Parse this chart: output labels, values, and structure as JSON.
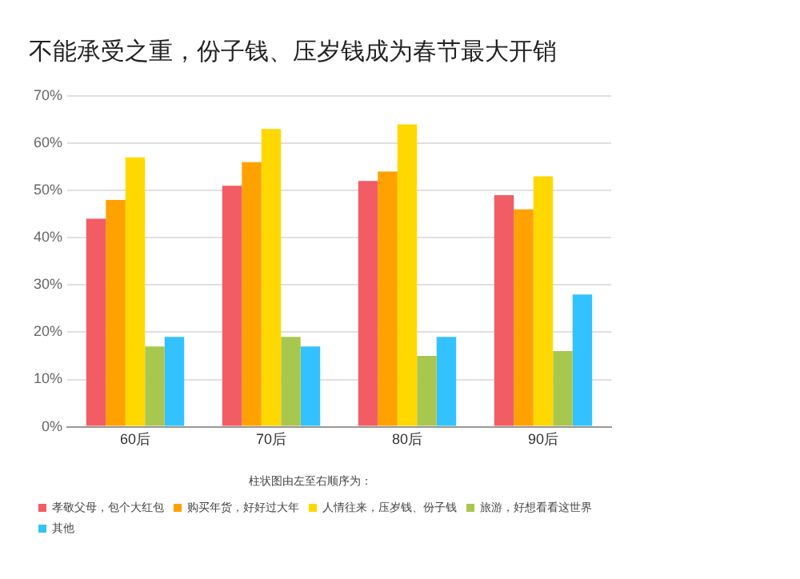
{
  "chart_data": {
    "type": "bar",
    "title": "不能承受之重，份子钱、压岁钱成为春节最大开销",
    "legend_title": "柱状图由左至右顺序为：",
    "categories": [
      "60后",
      "70后",
      "80后",
      "90后"
    ],
    "series": [
      {
        "name": "孝敬父母，包个大红包",
        "color": "#f25c64",
        "values": [
          44,
          51,
          52,
          49
        ]
      },
      {
        "name": "购买年货，好好过大年",
        "color": "#ffa200",
        "values": [
          48,
          56,
          54,
          46
        ]
      },
      {
        "name": "人情往来，压岁钱、份子钱",
        "color": "#ffd800",
        "values": [
          57,
          63,
          64,
          53
        ]
      },
      {
        "name": "旅游，好想看看这世界",
        "color": "#a8c74e",
        "values": [
          17,
          19,
          15,
          16
        ]
      },
      {
        "name": "其他",
        "color": "#33c2ff",
        "values": [
          19,
          17,
          19,
          28
        ]
      }
    ],
    "ylim": [
      0,
      70
    ],
    "yticks": [
      {
        "value": 0,
        "label": "0%"
      },
      {
        "value": 10,
        "label": "10%"
      },
      {
        "value": 20,
        "label": "20%"
      },
      {
        "value": 30,
        "label": "30%"
      },
      {
        "value": 40,
        "label": "40%"
      },
      {
        "value": 50,
        "label": "50%"
      },
      {
        "value": 60,
        "label": "60%"
      },
      {
        "value": 70,
        "label": "70%"
      }
    ],
    "grid": "y",
    "legend": "bottom"
  }
}
